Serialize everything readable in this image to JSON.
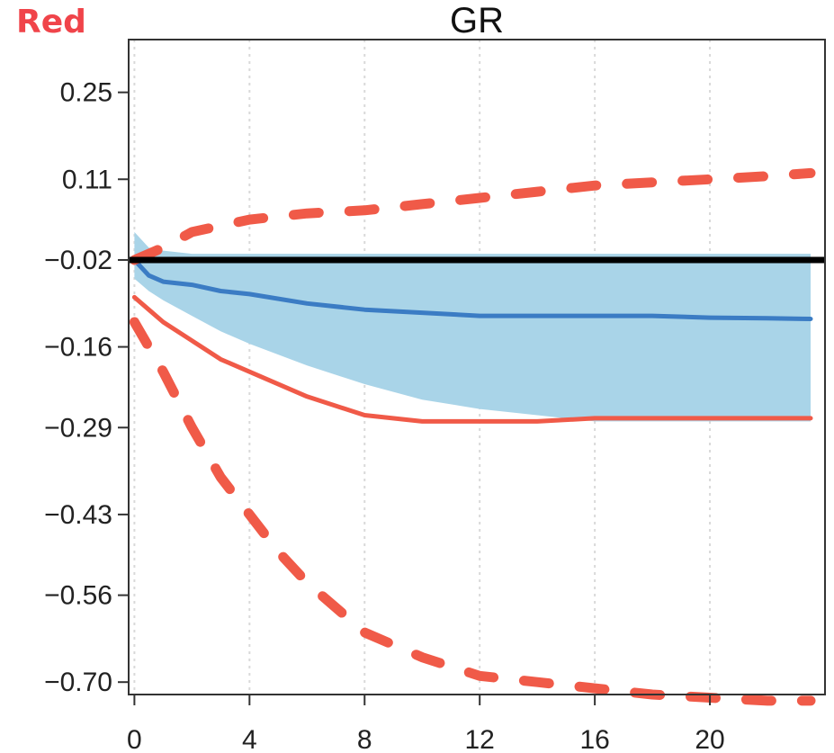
{
  "corner_label": {
    "text": "Red",
    "color": "#f0444a"
  },
  "chart_data": {
    "type": "line",
    "title": "GR",
    "xlabel": "",
    "ylabel": "",
    "xlim": [
      -0.2,
      24
    ],
    "ylim": [
      -0.72,
      0.335
    ],
    "x_ticks": [
      0,
      4,
      8,
      12,
      16,
      20
    ],
    "x_tick_labels": [
      "0",
      "4",
      "8",
      "12",
      "16",
      "20"
    ],
    "y_tick_labels": [
      {
        "value": 0.25,
        "label": "0.25"
      },
      {
        "value": 0.11,
        "label": "0.11"
      },
      {
        "value": -0.02,
        "label": "−0.02"
      },
      {
        "value": -0.16,
        "label": "−0.16"
      },
      {
        "value": -0.29,
        "label": "−0.29"
      },
      {
        "value": -0.43,
        "label": "−0.43"
      },
      {
        "value": -0.56,
        "label": "−0.56"
      },
      {
        "value": -0.7,
        "label": "−0.70"
      }
    ],
    "grid": "vertical-dotted",
    "zero_line": {
      "value": -0.02,
      "color": "#000000"
    },
    "band": {
      "color": "#a9d4e8",
      "x": [
        0,
        0.5,
        1,
        2,
        3,
        4,
        6,
        8,
        10,
        12,
        14,
        16,
        18,
        20,
        22,
        23.5
      ],
      "upper": [
        0.025,
        0.0,
        -0.005,
        -0.01,
        -0.01,
        -0.01,
        -0.01,
        -0.01,
        -0.01,
        -0.01,
        -0.01,
        -0.01,
        -0.01,
        -0.01,
        -0.01,
        -0.01
      ],
      "lower": [
        -0.05,
        -0.07,
        -0.085,
        -0.11,
        -0.135,
        -0.155,
        -0.19,
        -0.22,
        -0.245,
        -0.26,
        -0.27,
        -0.28,
        -0.28,
        -0.28,
        -0.28,
        -0.28
      ]
    },
    "series": [
      {
        "color": "#3b7cc4",
        "style": "solid",
        "x": [
          0,
          0.5,
          1,
          2,
          3,
          4,
          6,
          8,
          10,
          12,
          14,
          16,
          18,
          20,
          22,
          23.5
        ],
        "y": [
          -0.02,
          -0.045,
          -0.055,
          -0.06,
          -0.07,
          -0.075,
          -0.09,
          -0.1,
          -0.105,
          -0.11,
          -0.11,
          -0.11,
          -0.11,
          -0.113,
          -0.114,
          -0.115
        ]
      },
      {
        "color": "#f05a48",
        "style": "solid",
        "x": [
          0,
          0.5,
          1,
          2,
          3,
          4,
          6,
          8,
          10,
          12,
          14,
          16,
          18,
          20,
          22,
          23.5
        ],
        "y": [
          -0.08,
          -0.1,
          -0.12,
          -0.15,
          -0.18,
          -0.2,
          -0.24,
          -0.27,
          -0.28,
          -0.28,
          -0.28,
          -0.275,
          -0.275,
          -0.275,
          -0.275,
          -0.275
        ]
      },
      {
        "color": "#f05a48",
        "style": "dashed",
        "x": [
          0,
          1,
          2,
          3,
          4,
          6,
          8,
          10,
          12,
          14,
          16,
          18,
          20,
          22,
          23.5
        ],
        "y": [
          -0.02,
          0.0,
          0.025,
          0.035,
          0.045,
          0.055,
          0.06,
          0.07,
          0.08,
          0.09,
          0.1,
          0.105,
          0.11,
          0.115,
          0.12
        ]
      },
      {
        "color": "#f05a48",
        "style": "dashed",
        "x": [
          0,
          1,
          2,
          3,
          4,
          5,
          6,
          8,
          10,
          12,
          14,
          16,
          18,
          20,
          22,
          23.5
        ],
        "y": [
          -0.12,
          -0.2,
          -0.29,
          -0.37,
          -0.43,
          -0.49,
          -0.54,
          -0.62,
          -0.66,
          -0.69,
          -0.7,
          -0.71,
          -0.72,
          -0.725,
          -0.73,
          -0.73
        ]
      }
    ]
  }
}
